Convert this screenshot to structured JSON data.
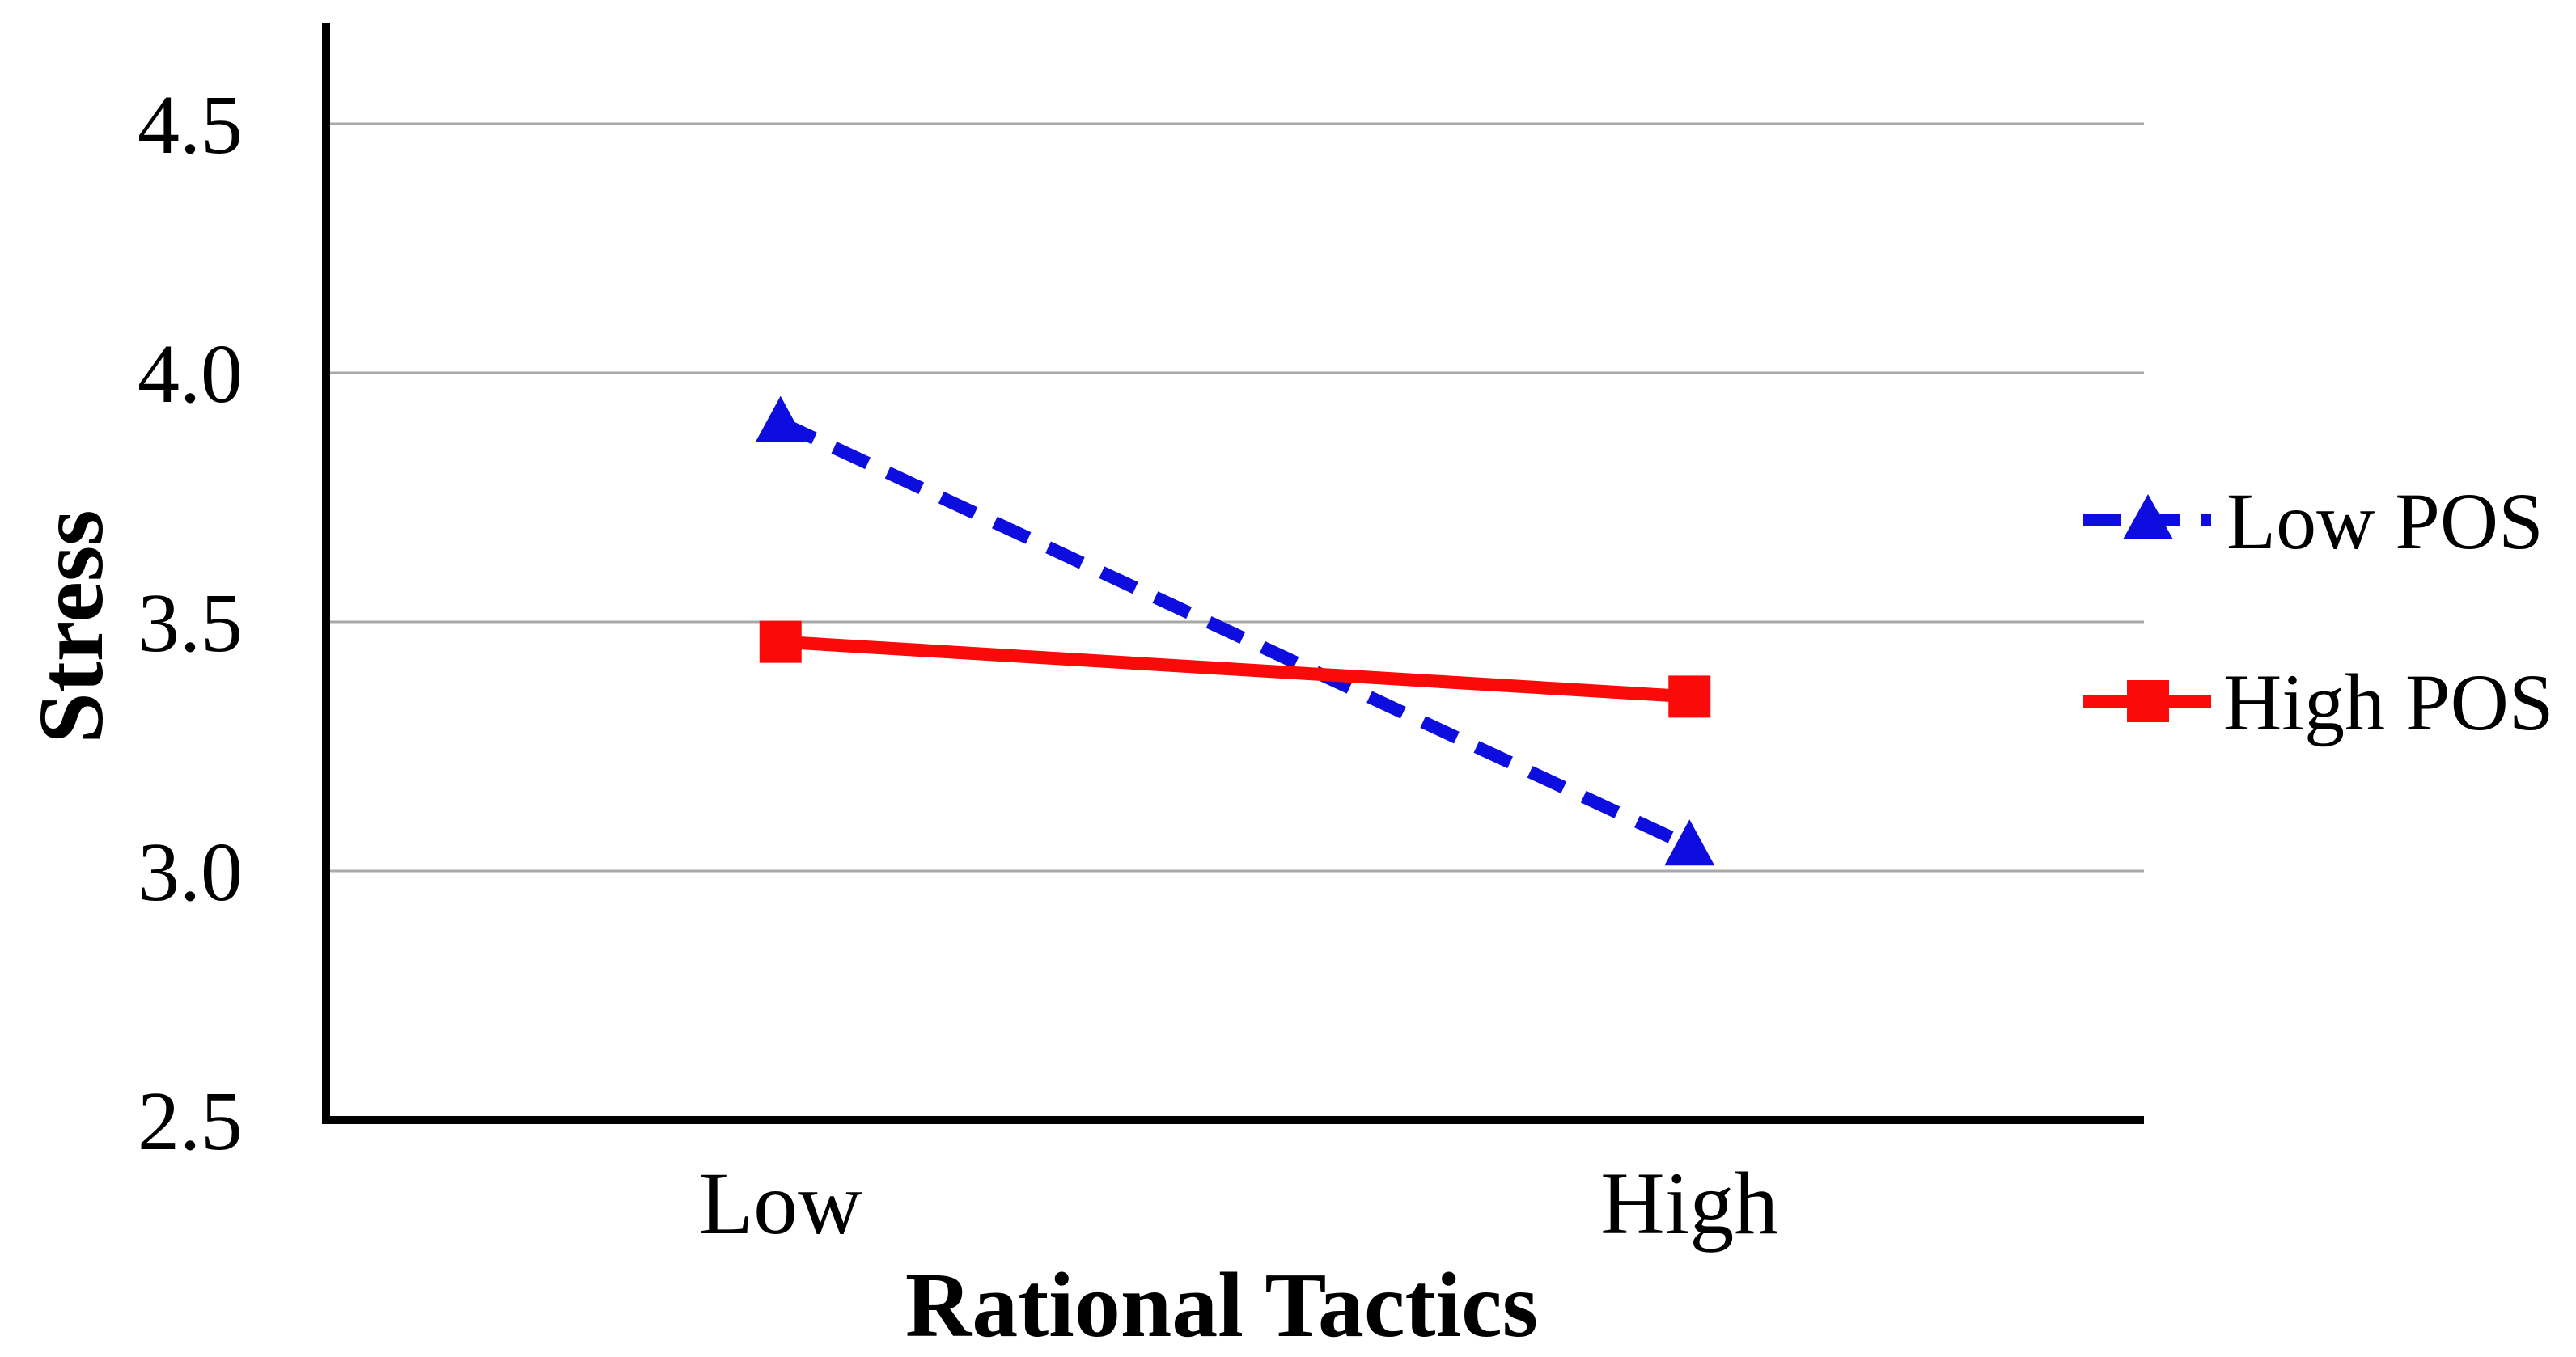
{
  "chart_data": {
    "type": "line",
    "categories": [
      "Low",
      "High"
    ],
    "series": [
      {
        "name": "Low POS",
        "values": [
          3.9,
          3.05
        ],
        "color": "#0D0DE0",
        "line_style": "dashed",
        "marker": "triangle"
      },
      {
        "name": "High POS",
        "values": [
          3.46,
          3.35
        ],
        "color": "#FB0A0A",
        "line_style": "solid",
        "marker": "square"
      }
    ],
    "title": "",
    "xlabel": "Rational Tactics",
    "ylabel": "Stress",
    "ylim": [
      2.5,
      4.7
    ],
    "yticks": [
      2.5,
      3.0,
      3.5,
      4.0,
      4.5
    ],
    "ytick_labels": [
      "2.5",
      "3.0",
      "3.5",
      "4.0",
      "4.5"
    ],
    "grid": true,
    "legend_position": "right",
    "gridline_color": "#A8A8A8",
    "axis_color": "#000000",
    "background": "#FFFFFF"
  }
}
